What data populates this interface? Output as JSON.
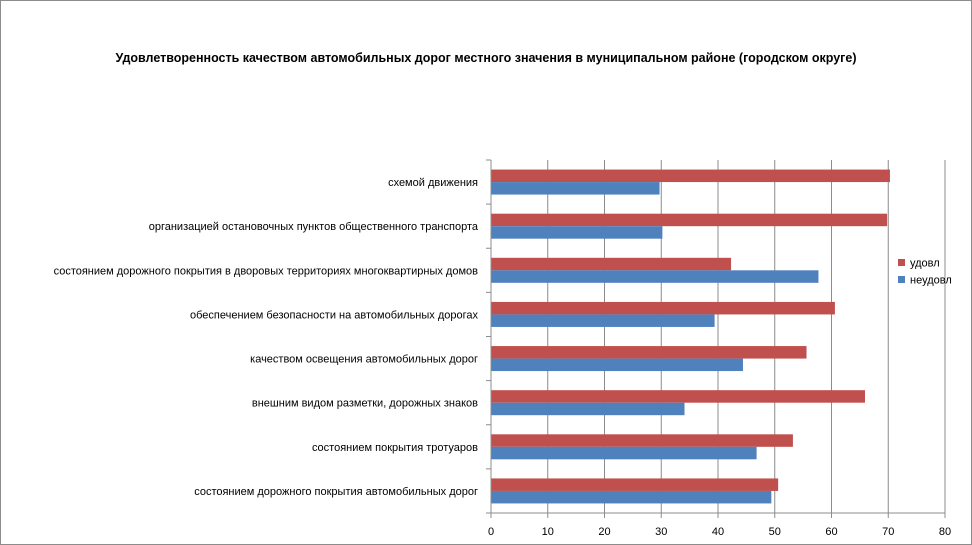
{
  "chart_data": {
    "type": "bar",
    "orientation": "horizontal",
    "title": "Удовлетворенность качеством автомобильных дорог местного значения в муниципальном районе (городском округе)",
    "categories": [
      "схемой движения",
      "организацией остановочных пунктов общественного транспорта",
      "состоянием дорожного покрытия в дворовых территориях многоквартирных домов",
      "обеспечением безопасности на автомобильных дорогах",
      "качеством освещения автомобильных дорог",
      "внешним видом разметки, дорожных знаков",
      "состоянием покрытия тротуаров",
      "состоянием дорожного покрытия автомобильных дорог"
    ],
    "series": [
      {
        "name": "удовл",
        "color": "#c0504d",
        "values": [
          70.3,
          69.8,
          42.3,
          60.6,
          55.6,
          65.9,
          53.2,
          50.6
        ]
      },
      {
        "name": "неудовл",
        "color": "#4f81bd",
        "values": [
          29.7,
          30.2,
          57.7,
          39.4,
          44.4,
          34.1,
          46.8,
          49.4
        ]
      }
    ],
    "xlim": [
      0,
      80
    ],
    "xticks": [
      "0",
      "10",
      "20",
      "30",
      "40",
      "50",
      "60",
      "70",
      "80"
    ],
    "grid": true,
    "legend": "right",
    "xlabel": "",
    "ylabel": ""
  }
}
